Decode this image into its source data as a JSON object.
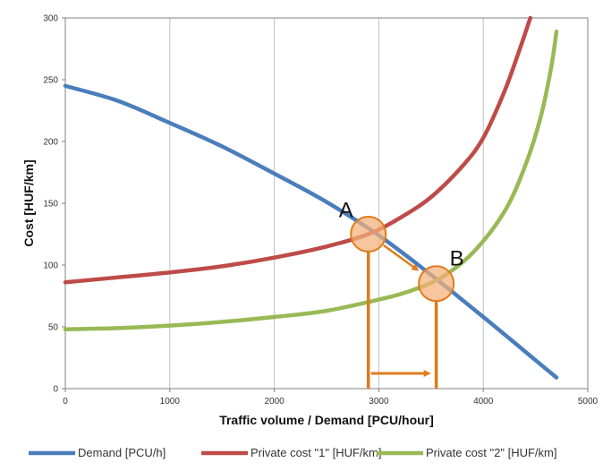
{
  "chart_data": {
    "type": "line",
    "xlabel": "Traffic volume / Demand [PCU/hour]",
    "ylabel": "Cost [HUF/km]",
    "xlim": [
      0,
      5000
    ],
    "ylim": [
      0,
      300
    ],
    "xticks": [
      "0",
      "1000",
      "2000",
      "3000",
      "4000",
      "5000"
    ],
    "yticks": [
      "0",
      "50",
      "100",
      "150",
      "200",
      "250",
      "300"
    ],
    "grid": "vertical",
    "legend_position": "bottom",
    "series": [
      {
        "name": "Demand [PCU/h]",
        "color": "#4a7ebb",
        "x": [
          0,
          500,
          1000,
          1500,
          2000,
          2500,
          3000,
          3500,
          4000,
          4500,
          4700
        ],
        "y": [
          245,
          233,
          215,
          196,
          174,
          151,
          124,
          92,
          58,
          23,
          9
        ]
      },
      {
        "name": "Private cost \"1\" [HUF/km]",
        "color": "#be4b48",
        "x": [
          0,
          500,
          1000,
          1500,
          2000,
          2500,
          2900,
          3200,
          3500,
          3800,
          4000,
          4200,
          4350,
          4450
        ],
        "y": [
          86,
          90,
          94,
          99,
          106,
          115,
          125,
          138,
          155,
          180,
          203,
          240,
          275,
          300
        ]
      },
      {
        "name": "Private cost \"2\" [HUF/km]",
        "color": "#98b954",
        "x": [
          0,
          500,
          1000,
          1500,
          2000,
          2500,
          3000,
          3300,
          3600,
          3900,
          4200,
          4400,
          4550,
          4650,
          4700
        ],
        "y": [
          48,
          49,
          51,
          54,
          58,
          63,
          72,
          79,
          90,
          110,
          143,
          180,
          220,
          260,
          289
        ]
      }
    ],
    "annotations": [
      {
        "label": "A",
        "x": 2900,
        "y": 125
      },
      {
        "label": "B",
        "x": 3550,
        "y": 85
      }
    ]
  }
}
